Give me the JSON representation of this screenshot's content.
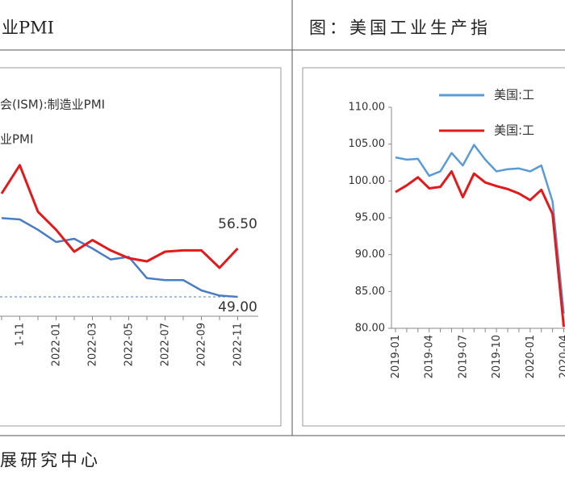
{
  "chart_data": [
    {
      "type": "line",
      "title": "业PMI",
      "categories": [
        null,
        "1-11",
        null,
        "2022-01",
        null,
        "2022-03",
        null,
        "2022-05",
        null,
        "2022-07",
        null,
        "2022-09",
        null,
        "2022-11"
      ],
      "series": [
        {
          "name": "会(ISM):制造业PMI",
          "color": "#4a7cc4",
          "values": [
            61.2,
            61,
            59.4,
            57.5,
            58,
            56.5,
            54.8,
            55.2,
            51.9,
            51.6,
            51.6,
            50,
            49.2,
            49
          ],
          "end_label": "49.00"
        },
        {
          "name": "业PMI",
          "color": "#e31a1c",
          "values": [
            65,
            69.4,
            62.2,
            59.4,
            56,
            57.8,
            56.2,
            55,
            54.5,
            56,
            56.2,
            56.2,
            53.5,
            56.5
          ],
          "end_label": "56.50"
        }
      ],
      "ylim": [
        45,
        85
      ],
      "reference_line": 49
    },
    {
      "type": "line",
      "title": "图：美国工业生产指",
      "categories": [
        "2019-01",
        null,
        null,
        "2019-04",
        null,
        null,
        "2019-07",
        null,
        null,
        "2019-10",
        null,
        null,
        "2020-01",
        null,
        null,
        "2020-04"
      ],
      "series": [
        {
          "name": "美国:工",
          "color": "#5b9bd5",
          "values": [
            103.2,
            102.9,
            103,
            100.7,
            101.3,
            103.8,
            102.1,
            104.9,
            102.9,
            101.3,
            101.6,
            101.7,
            101.3,
            102.1,
            97.2,
            82
          ]
        },
        {
          "name": "美国:工",
          "color": "#e31a1c",
          "values": [
            98.5,
            99.4,
            100.5,
            99,
            99.2,
            101.3,
            97.8,
            101,
            99.8,
            99.3,
            98.9,
            98.3,
            97.4,
            98.8,
            95.5,
            80.2
          ]
        }
      ],
      "ylim": [
        80,
        110
      ],
      "yticks": [
        {
          "value": 80,
          "label": "80.00"
        },
        {
          "value": 85,
          "label": "85.00"
        },
        {
          "value": 90,
          "label": "90.00"
        },
        {
          "value": 95,
          "label": "95.00"
        },
        {
          "value": 100,
          "label": "100.00"
        },
        {
          "value": 105,
          "label": "105.00"
        },
        {
          "value": 110,
          "label": "110.00"
        }
      ]
    }
  ],
  "source": "展研究中心"
}
